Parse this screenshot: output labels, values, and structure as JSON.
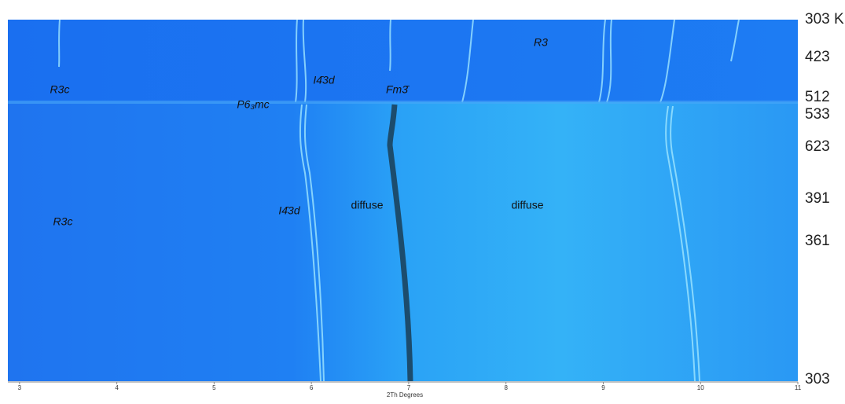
{
  "chart_data": {
    "type": "heatmap",
    "xlabel": "2Th Degrees",
    "xlim": [
      2.88,
      11
    ],
    "xticks": [
      3,
      4,
      5,
      6,
      7,
      8,
      9,
      10,
      11
    ],
    "temperature_labels": [
      "303 K",
      "423",
      "512",
      "533",
      "623",
      "391",
      "361",
      "303"
    ],
    "annotations": [
      "R3c",
      "P6₃mc",
      "I4̄3d",
      "Fm3̄",
      "R3",
      "I4̄3d",
      "diffuse",
      "diffuse",
      "R3c"
    ]
  }
}
